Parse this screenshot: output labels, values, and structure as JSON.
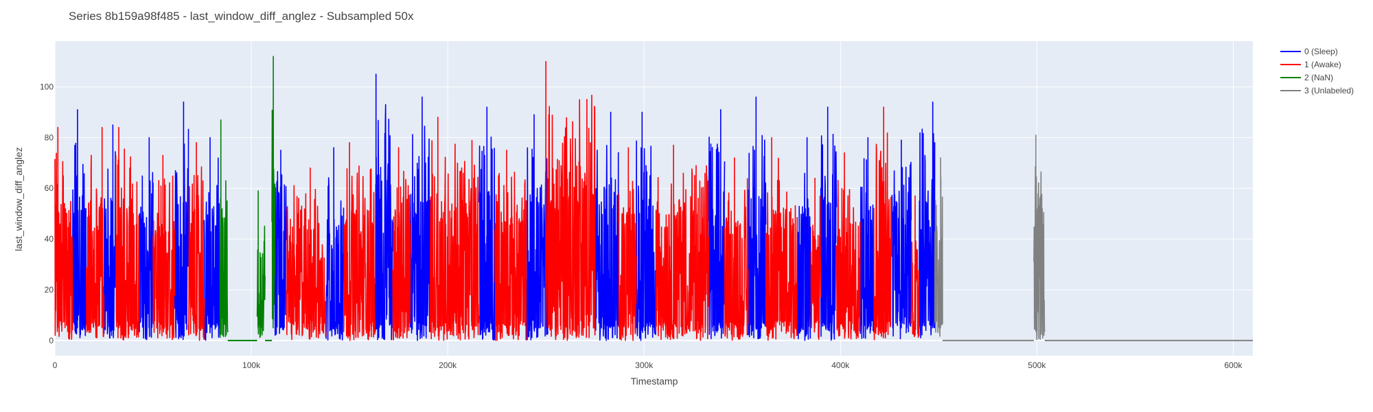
{
  "chart_data": {
    "type": "line",
    "title": "Series 8b159a98f485 - last_window_diff_anglez - Subsampled 50x",
    "xlabel": "Timestamp",
    "ylabel": "last_window_diff_anglez",
    "xlim": [
      0,
      610000
    ],
    "ylim": [
      -6,
      118
    ],
    "x_ticks": [
      0,
      100000,
      200000,
      300000,
      400000,
      500000,
      600000
    ],
    "x_tick_labels": [
      "0",
      "100k",
      "200k",
      "300k",
      "400k",
      "500k",
      "600k"
    ],
    "y_ticks": [
      0,
      20,
      40,
      60,
      80,
      100
    ],
    "y_tick_labels": [
      "0",
      "20",
      "40",
      "60",
      "80",
      "100"
    ],
    "grid": true,
    "legend_position": "top-right",
    "background": "#e5ecf6",
    "series": [
      {
        "name": "0 (Sleep)",
        "color": "#0000ff",
        "segments": [
          {
            "x_range": [
              9000,
              16000
            ],
            "peaks": [
              {
                "x": 11500,
                "y": 91
              }
            ]
          },
          {
            "x_range": [
              25000,
              31000
            ],
            "peaks": [
              {
                "x": 29500,
                "y": 85
              }
            ]
          },
          {
            "x_range": [
              43000,
              50000
            ],
            "peaks": [
              {
                "x": 48000,
                "y": 80
              }
            ]
          },
          {
            "x_range": [
              61000,
              68000
            ],
            "peaks": [
              {
                "x": 65500,
                "y": 94
              }
            ]
          },
          {
            "x_range": [
              76000,
              84000
            ],
            "peaks": [
              {
                "x": 79000,
                "y": 80
              }
            ]
          },
          {
            "x_range": [
              112000,
              118000
            ],
            "peaks": [
              {
                "x": 115000,
                "y": 75
              }
            ]
          },
          {
            "x_range": [
              138000,
              147000
            ],
            "peaks": [
              {
                "x": 142000,
                "y": 76
              }
            ]
          },
          {
            "x_range": [
              163000,
              172000
            ],
            "peaks": [
              {
                "x": 163500,
                "y": 105
              }
            ]
          },
          {
            "x_range": [
              181000,
              191000
            ],
            "peaks": [
              {
                "x": 187000,
                "y": 96
              }
            ]
          },
          {
            "x_range": [
              216000,
              224000
            ],
            "peaks": [
              {
                "x": 220000,
                "y": 92
              }
            ]
          },
          {
            "x_range": [
              240000,
              251000
            ],
            "peaks": [
              {
                "x": 244000,
                "y": 89
              }
            ]
          },
          {
            "x_range": [
              275000,
              287000
            ],
            "peaks": [
              {
                "x": 283000,
                "y": 90
              }
            ]
          },
          {
            "x_range": [
              296000,
              306000
            ],
            "peaks": [
              {
                "x": 299000,
                "y": 90
              }
            ]
          },
          {
            "x_range": [
              333000,
              341000
            ],
            "peaks": [
              {
                "x": 339000,
                "y": 91
              }
            ]
          },
          {
            "x_range": [
              353000,
              362000
            ],
            "peaks": [
              {
                "x": 357000,
                "y": 96
              }
            ]
          },
          {
            "x_range": [
              378000,
              385000
            ],
            "peaks": [
              {
                "x": 383000,
                "y": 80
              }
            ]
          },
          {
            "x_range": [
              390000,
              398000
            ],
            "peaks": [
              {
                "x": 393500,
                "y": 92
              }
            ]
          },
          {
            "x_range": [
              410000,
              417000
            ],
            "peaks": [
              {
                "x": 414000,
                "y": 80
              }
            ]
          },
          {
            "x_range": [
              426000,
              436000
            ],
            "peaks": [
              {
                "x": 431000,
                "y": 79
              }
            ]
          },
          {
            "x_range": [
              440000,
              448000
            ],
            "peaks": [
              {
                "x": 447000,
                "y": 94
              }
            ]
          }
        ]
      },
      {
        "name": "1 (Awake)",
        "color": "#ff0000",
        "segments": [
          {
            "x_range": [
              0,
              9000
            ],
            "peaks": [
              {
                "x": 1500,
                "y": 84
              }
            ]
          },
          {
            "x_range": [
              16000,
              25000
            ],
            "peaks": [
              {
                "x": 24000,
                "y": 84
              }
            ]
          },
          {
            "x_range": [
              31000,
              43000
            ],
            "peaks": [
              {
                "x": 32500,
                "y": 84
              }
            ]
          },
          {
            "x_range": [
              50000,
              61000
            ],
            "peaks": [
              {
                "x": 55000,
                "y": 73
              }
            ]
          },
          {
            "x_range": [
              68000,
              76000
            ],
            "peaks": [
              {
                "x": 72000,
                "y": 78
              }
            ]
          },
          {
            "x_range": [
              118000,
              138000
            ],
            "peaks": [
              {
                "x": 130000,
                "y": 68
              }
            ]
          },
          {
            "x_range": [
              147000,
              163000
            ],
            "peaks": [
              {
                "x": 150000,
                "y": 78
              }
            ]
          },
          {
            "x_range": [
              172000,
              181000
            ],
            "peaks": [
              {
                "x": 175000,
                "y": 76
              }
            ]
          },
          {
            "x_range": [
              191000,
              216000
            ],
            "peaks": [
              {
                "x": 195000,
                "y": 88
              }
            ]
          },
          {
            "x_range": [
              224000,
              240000
            ],
            "peaks": [
              {
                "x": 230000,
                "y": 75
              }
            ]
          },
          {
            "x_range": [
              251000,
              275000
            ],
            "peaks": [
              {
                "x": 250000,
                "y": 110
              }
            ]
          },
          {
            "x_range": [
              287000,
              296000
            ],
            "peaks": [
              {
                "x": 292000,
                "y": 76
              }
            ]
          },
          {
            "x_range": [
              306000,
              333000
            ],
            "peaks": [
              {
                "x": 315000,
                "y": 77
              }
            ]
          },
          {
            "x_range": [
              341000,
              353000
            ],
            "peaks": [
              {
                "x": 346000,
                "y": 72
              }
            ]
          },
          {
            "x_range": [
              362000,
              378000
            ],
            "peaks": [
              {
                "x": 365000,
                "y": 80
              }
            ]
          },
          {
            "x_range": [
              385000,
              390000
            ],
            "peaks": [
              {
                "x": 387000,
                "y": 64
              }
            ]
          },
          {
            "x_range": [
              398000,
              410000
            ],
            "peaks": [
              {
                "x": 402000,
                "y": 74
              }
            ]
          },
          {
            "x_range": [
              417000,
              426000
            ],
            "peaks": [
              {
                "x": 422000,
                "y": 92
              }
            ]
          },
          {
            "x_range": [
              436000,
              440000
            ],
            "peaks": [
              {
                "x": 438000,
                "y": 57
              }
            ]
          }
        ]
      },
      {
        "name": "2 (NaN)",
        "color": "#008000",
        "segments": [
          {
            "x_range": [
              84000,
              88000
            ],
            "peaks": [
              {
                "x": 84500,
                "y": 87
              }
            ]
          },
          {
            "x_range": [
              103000,
              107000
            ],
            "peaks": [
              {
                "x": 103500,
                "y": 59
              }
            ]
          },
          {
            "x_range": [
              110500,
              112000
            ],
            "peaks": [
              {
                "x": 111200,
                "y": 112
              }
            ]
          }
        ],
        "flat_zero": [
          [
            88000,
            103000
          ],
          [
            107000,
            110500
          ]
        ]
      },
      {
        "name": "3 (Unlabeled)",
        "color": "#808080",
        "segments": [
          {
            "x_range": [
              448000,
              452000
            ],
            "peaks": [
              {
                "x": 451000,
                "y": 72
              }
            ]
          },
          {
            "x_range": [
              498500,
              504000
            ],
            "peaks": [
              {
                "x": 499500,
                "y": 81
              }
            ]
          }
        ],
        "flat_zero": [
          [
            452000,
            498500
          ],
          [
            504000,
            610000
          ]
        ]
      }
    ]
  }
}
